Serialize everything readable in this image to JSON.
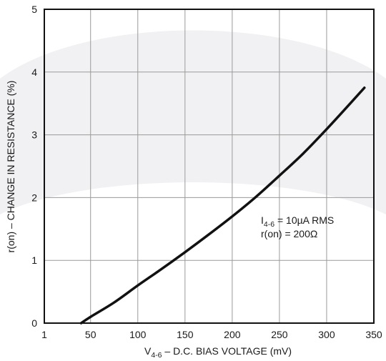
{
  "chart_data": {
    "type": "line",
    "title": "",
    "xlabel": {
      "prefix": "V",
      "subscript": "4-6",
      "text": " – D.C. BIAS VOLTAGE (mV)"
    },
    "ylabel": "r(on) – CHANGE IN RESISTANCE (%)",
    "xlim": [
      1,
      350
    ],
    "ylim": [
      0,
      5
    ],
    "x_ticks": [
      1,
      50,
      100,
      150,
      200,
      250,
      300,
      350
    ],
    "y_ticks": [
      0,
      1,
      2,
      3,
      4,
      5
    ],
    "grid": true,
    "series": [
      {
        "x": [
          40,
          50,
          75,
          100,
          125,
          150,
          175,
          200,
          225,
          250,
          275,
          300,
          325,
          340
        ],
        "y": [
          0,
          0.1,
          0.33,
          0.6,
          0.86,
          1.13,
          1.41,
          1.7,
          2.01,
          2.35,
          2.7,
          3.09,
          3.5,
          3.75
        ]
      }
    ],
    "annotation": {
      "line1_prefix": "I",
      "line1_subscript": "4-6",
      "line1_text": " = 10µA RMS",
      "line2": "r(on) = 200Ω"
    },
    "colors": {
      "line": "#111111",
      "grid": "#9a9a9a",
      "frame": "#111111",
      "watermark": "#f1f1f3"
    }
  }
}
